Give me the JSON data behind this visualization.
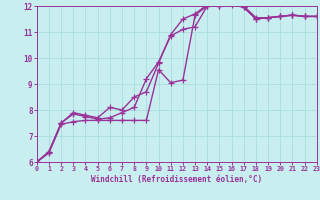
{
  "xlabel": "Windchill (Refroidissement éolien,°C)",
  "ylabel": "",
  "xlim": [
    0,
    23
  ],
  "ylim": [
    6,
    12
  ],
  "xticks": [
    0,
    1,
    2,
    3,
    4,
    5,
    6,
    7,
    8,
    9,
    10,
    11,
    12,
    13,
    14,
    15,
    16,
    17,
    18,
    19,
    20,
    21,
    22,
    23
  ],
  "yticks": [
    6,
    7,
    8,
    9,
    10,
    11,
    12
  ],
  "background_color": "#c8eef0",
  "grid_color": "#aadddd",
  "line_color": "#993399",
  "line_width": 1.0,
  "marker": "+",
  "marker_size": 4,
  "curves": [
    [
      [
        0,
        6.0
      ],
      [
        1,
        6.4
      ],
      [
        2,
        7.5
      ],
      [
        3,
        7.9
      ],
      [
        4,
        7.8
      ],
      [
        5,
        7.7
      ],
      [
        6,
        8.1
      ],
      [
        7,
        8.0
      ],
      [
        8,
        8.5
      ],
      [
        9,
        8.7
      ],
      [
        10,
        9.8
      ],
      [
        11,
        10.9
      ],
      [
        12,
        11.5
      ],
      [
        13,
        11.7
      ],
      [
        14,
        12.05
      ],
      [
        15,
        12.1
      ],
      [
        16,
        12.1
      ],
      [
        17,
        12.0
      ],
      [
        18,
        11.55
      ],
      [
        19,
        11.55
      ],
      [
        20,
        11.6
      ],
      [
        21,
        11.65
      ],
      [
        22,
        11.6
      ],
      [
        23,
        11.6
      ]
    ],
    [
      [
        0,
        6.0
      ],
      [
        1,
        6.4
      ],
      [
        2,
        7.5
      ],
      [
        3,
        7.85
      ],
      [
        4,
        7.75
      ],
      [
        5,
        7.65
      ],
      [
        6,
        7.7
      ],
      [
        7,
        7.9
      ],
      [
        8,
        8.1
      ],
      [
        9,
        9.2
      ],
      [
        10,
        9.85
      ],
      [
        11,
        10.85
      ],
      [
        12,
        11.1
      ],
      [
        13,
        11.2
      ],
      [
        14,
        12.0
      ],
      [
        15,
        12.0
      ],
      [
        16,
        12.1
      ],
      [
        17,
        11.95
      ],
      [
        18,
        11.5
      ],
      [
        19,
        11.55
      ],
      [
        20,
        11.6
      ],
      [
        21,
        11.65
      ],
      [
        22,
        11.6
      ],
      [
        23,
        11.6
      ]
    ],
    [
      [
        0,
        6.0
      ],
      [
        1,
        6.35
      ],
      [
        2,
        7.45
      ],
      [
        3,
        7.55
      ],
      [
        4,
        7.6
      ],
      [
        5,
        7.6
      ],
      [
        6,
        7.6
      ],
      [
        7,
        7.6
      ],
      [
        8,
        7.6
      ],
      [
        9,
        7.6
      ],
      [
        10,
        9.55
      ],
      [
        11,
        9.05
      ],
      [
        12,
        9.15
      ],
      [
        13,
        11.65
      ],
      [
        14,
        12.0
      ],
      [
        15,
        12.0
      ],
      [
        16,
        12.05
      ],
      [
        17,
        11.95
      ],
      [
        18,
        11.5
      ],
      [
        19,
        11.55
      ],
      [
        20,
        11.6
      ],
      [
        21,
        11.65
      ],
      [
        22,
        11.6
      ],
      [
        23,
        11.6
      ]
    ]
  ]
}
